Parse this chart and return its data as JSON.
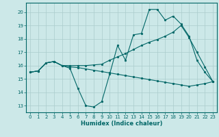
{
  "xlabel": "Humidex (Indice chaleur)",
  "background_color": "#cce8e8",
  "grid_color": "#aacccc",
  "line_color": "#006666",
  "xlim": [
    -0.5,
    23.5
  ],
  "ylim": [
    12.5,
    20.7
  ],
  "yticks": [
    13,
    14,
    15,
    16,
    17,
    18,
    19,
    20
  ],
  "xticks": [
    0,
    1,
    2,
    3,
    4,
    5,
    6,
    7,
    8,
    9,
    10,
    11,
    12,
    13,
    14,
    15,
    16,
    17,
    18,
    19,
    20,
    21,
    22,
    23
  ],
  "line1_x": [
    0,
    1,
    2,
    3,
    4,
    5,
    6,
    7,
    8,
    9,
    10,
    11,
    12,
    13,
    14,
    15,
    16,
    17,
    18,
    19,
    20,
    21,
    22,
    23
  ],
  "line1_y": [
    15.5,
    15.6,
    16.2,
    16.3,
    16.0,
    15.8,
    14.3,
    13.0,
    12.9,
    13.3,
    15.35,
    17.5,
    16.4,
    18.3,
    18.4,
    20.2,
    20.2,
    19.4,
    19.7,
    19.1,
    18.2,
    16.4,
    15.5,
    14.8
  ],
  "line2_x": [
    0,
    1,
    2,
    3,
    4,
    5,
    6,
    7,
    8,
    9,
    10,
    11,
    12,
    13,
    14,
    15,
    16,
    17,
    18,
    19,
    20,
    21,
    22,
    23
  ],
  "line2_y": [
    15.5,
    15.6,
    16.2,
    16.3,
    16.0,
    16.0,
    16.0,
    16.0,
    16.05,
    16.1,
    16.4,
    16.65,
    16.9,
    17.2,
    17.5,
    17.75,
    17.95,
    18.2,
    18.5,
    19.0,
    18.1,
    17.0,
    15.9,
    14.8
  ],
  "line3_x": [
    0,
    1,
    2,
    3,
    4,
    5,
    6,
    7,
    8,
    9,
    10,
    11,
    12,
    13,
    14,
    15,
    16,
    17,
    18,
    19,
    20,
    21,
    22,
    23
  ],
  "line3_y": [
    15.5,
    15.6,
    16.2,
    16.3,
    16.0,
    15.9,
    15.85,
    15.75,
    15.65,
    15.55,
    15.45,
    15.35,
    15.25,
    15.15,
    15.05,
    14.95,
    14.85,
    14.75,
    14.65,
    14.55,
    14.45,
    14.55,
    14.65,
    14.8
  ]
}
